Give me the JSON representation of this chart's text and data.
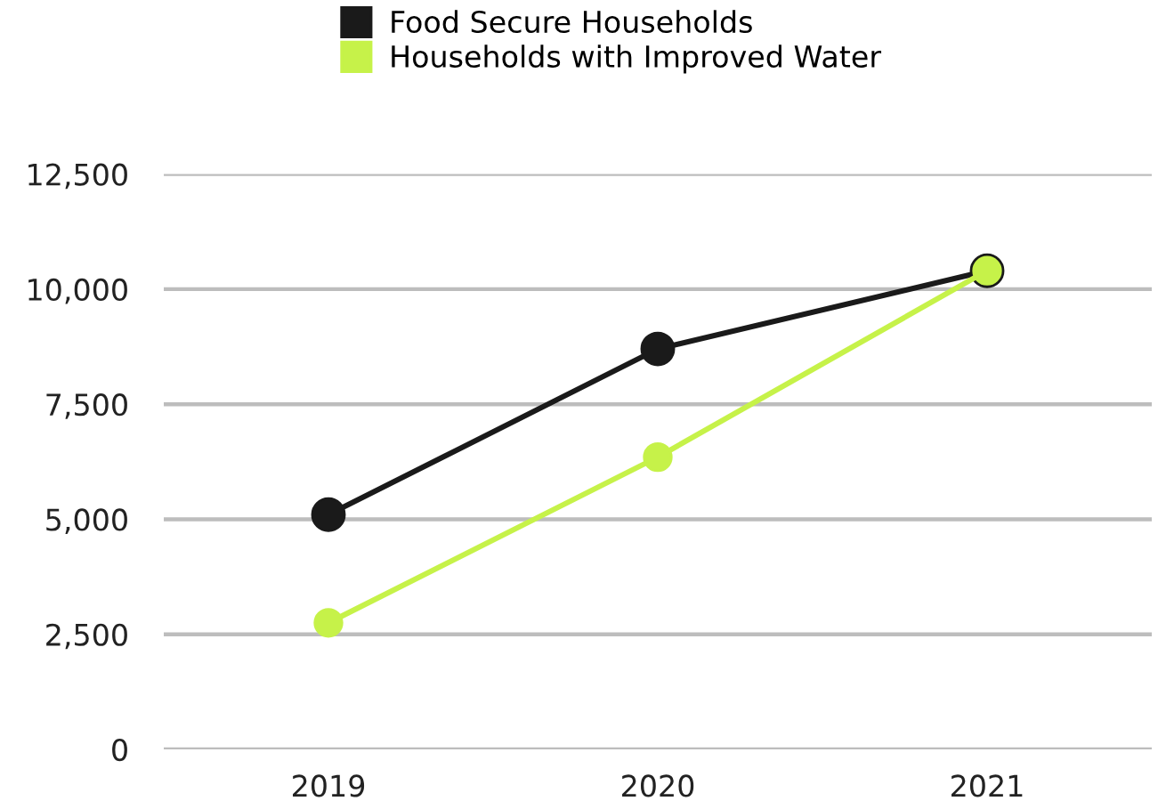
{
  "chart_data": {
    "type": "line",
    "categories": [
      "2019",
      "2020",
      "2021"
    ],
    "series": [
      {
        "name": "Food Secure Households",
        "color": "#1a1a1a",
        "values": [
          5100,
          8700,
          10400
        ]
      },
      {
        "name": "Households with Improved Water",
        "color": "#c6f249",
        "values": [
          2750,
          6350,
          10400
        ]
      }
    ],
    "ylim": [
      0,
      12500
    ],
    "yticks": [
      {
        "value": 0,
        "label": "0"
      },
      {
        "value": 2500,
        "label": "2,500"
      },
      {
        "value": 5000,
        "label": "5,000"
      },
      {
        "value": 7500,
        "label": "7,500"
      },
      {
        "value": 10000,
        "label": "10,000"
      },
      {
        "value": 12500,
        "label": "12,500"
      }
    ],
    "grid": "y",
    "legend": "top",
    "marker": "circle",
    "line_style": "solid"
  }
}
